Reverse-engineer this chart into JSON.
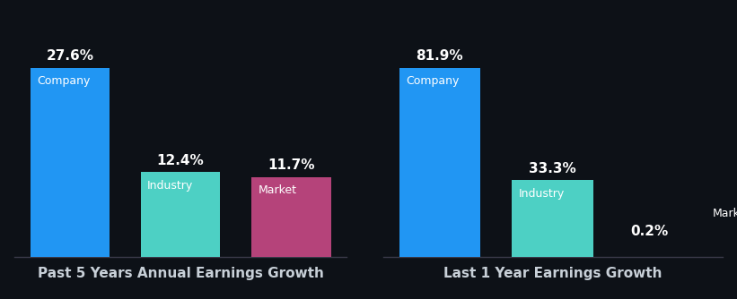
{
  "background_color": "#0d1117",
  "chart1": {
    "title": "Past 5 Years Annual Earnings Growth",
    "categories": [
      "Company",
      "Industry",
      "Market"
    ],
    "values": [
      27.6,
      12.4,
      11.7
    ],
    "colors": [
      "#2196f3",
      "#4dd0c4",
      "#b5437a"
    ],
    "label_above": [
      "27.6%",
      "12.4%",
      "11.7%"
    ]
  },
  "chart2": {
    "title": "Last 1 Year Earnings Growth",
    "categories": [
      "Company",
      "Industry",
      "Market"
    ],
    "values": [
      81.9,
      33.3,
      0.2
    ],
    "colors": [
      "#2196f3",
      "#4dd0c4",
      "#b5437a"
    ],
    "label_above": [
      "81.9%",
      "33.3%",
      "0.2%"
    ]
  },
  "bar_label_fontsize": 11,
  "inner_label_fontsize": 9,
  "title_fontsize": 11,
  "text_color": "#ffffff",
  "title_color": "#c8d0d8"
}
